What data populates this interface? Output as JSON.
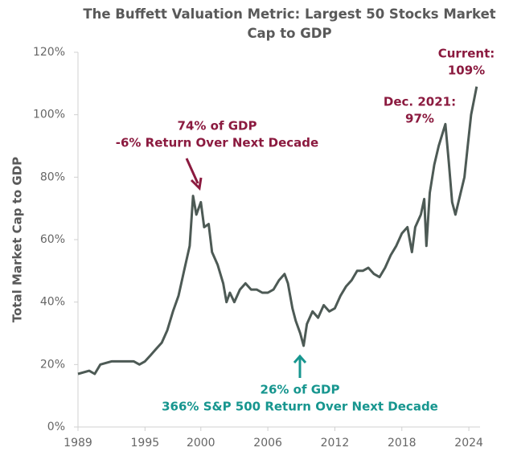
{
  "chart_data": {
    "type": "line",
    "title": "The Buffett Valuation Metric: Largest 50 Stocks Market Cap to GDP",
    "y_label": "Total Market Cap to GDP",
    "x": [
      1989,
      1990,
      1990.5,
      1991,
      1992,
      1993,
      1994,
      1994.5,
      1995,
      1995.5,
      1996,
      1996.5,
      1997,
      1997.5,
      1998,
      1998.5,
      1999,
      1999.3,
      1999.6,
      2000,
      2000.3,
      2000.7,
      2001,
      2001.5,
      2002,
      2002.3,
      2002.6,
      2003,
      2003.5,
      2004,
      2004.5,
      2005,
      2005.5,
      2006,
      2006.5,
      2007,
      2007.5,
      2007.8,
      2008.2,
      2008.5,
      2008.9,
      2009.2,
      2009.5,
      2010,
      2010.5,
      2011,
      2011.5,
      2012,
      2012.5,
      2013,
      2013.5,
      2014,
      2014.5,
      2015,
      2015.5,
      2016,
      2016.5,
      2017,
      2017.5,
      2018,
      2018.5,
      2018.9,
      2019.2,
      2019.7,
      2020,
      2020.2,
      2020.5,
      2020.9,
      2021.3,
      2021.9,
      2022.2,
      2022.5,
      2022.8,
      2023.2,
      2023.6,
      2023.9,
      2024.2,
      2024.7
    ],
    "series": [
      {
        "name": "Market Cap to GDP",
        "color": "#4d5a55",
        "values": [
          17,
          18,
          17,
          20,
          21,
          21,
          21,
          20,
          21,
          23,
          25,
          27,
          31,
          37,
          42,
          50,
          58,
          74,
          68,
          72,
          64,
          65,
          56,
          52,
          46,
          40,
          43,
          40,
          44,
          46,
          44,
          44,
          43,
          43,
          44,
          47,
          49,
          46,
          38,
          34,
          30,
          26,
          33,
          37,
          35,
          39,
          37,
          38,
          42,
          45,
          47,
          50,
          50,
          51,
          49,
          48,
          51,
          55,
          58,
          62,
          64,
          56,
          64,
          68,
          73,
          58,
          75,
          84,
          90,
          97,
          85,
          72,
          68,
          74,
          80,
          90,
          100,
          109
        ]
      }
    ],
    "xlim": [
      1989,
      2025
    ],
    "xticks": [
      1989,
      1995,
      2000,
      2006,
      2012,
      2018,
      2024
    ],
    "ylim": [
      0,
      120
    ],
    "yticks": [
      {
        "value": 0,
        "label": "0%"
      },
      {
        "value": 20,
        "label": "20%"
      },
      {
        "value": 40,
        "label": "40%"
      },
      {
        "value": 60,
        "label": "60%"
      },
      {
        "value": 80,
        "label": "80%"
      },
      {
        "value": 100,
        "label": "100%"
      },
      {
        "value": 120,
        "label": "120%"
      }
    ],
    "annotations": [
      {
        "lines": [
          "74% of GDP",
          "-6% Return Over Next Decade"
        ],
        "color": "#8b1a3f"
      },
      {
        "lines": [
          "26% of GDP",
          "366% S&P 500 Return Over Next Decade"
        ],
        "color": "#17968f"
      },
      {
        "lines": [
          "Dec. 2021:",
          "97%"
        ],
        "color": "#8b1a3f"
      },
      {
        "lines": [
          "Current:",
          "109%"
        ],
        "color": "#8b1a3f"
      }
    ]
  }
}
